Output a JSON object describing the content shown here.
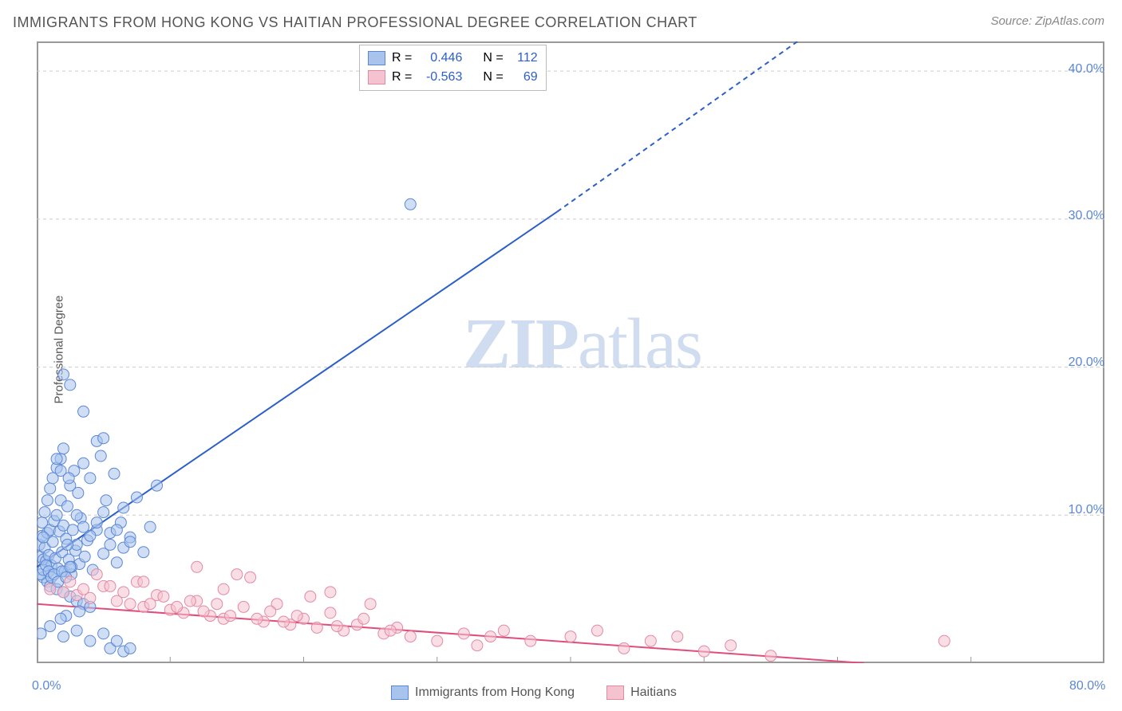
{
  "title": "IMMIGRANTS FROM HONG KONG VS HAITIAN PROFESSIONAL DEGREE CORRELATION CHART",
  "source_label": "Source: ZipAtlas.com",
  "watermark": "ZIPatlas",
  "ylabel": "Professional Degree",
  "chart": {
    "type": "scatter-with-regression",
    "xlim": [
      0,
      80
    ],
    "ylim": [
      0,
      42
    ],
    "x_ticks": [
      0,
      10,
      20,
      30,
      40,
      50,
      60,
      70,
      80
    ],
    "x_tick_labels": {
      "0": "0.0%",
      "80": "80.0%"
    },
    "y_ticks": [
      10,
      20,
      30,
      40
    ],
    "y_tick_labels": [
      "10.0%",
      "20.0%",
      "30.0%",
      "40.0%"
    ],
    "grid_y": [
      10,
      20,
      30,
      40
    ],
    "background_color": "#ffffff",
    "grid_color": "#cccccc",
    "axis_color": "#999999",
    "label_color": "#555555",
    "tick_label_color": "#5b87d6",
    "marker_radius": 7,
    "marker_opacity": 0.55,
    "line_width": 2,
    "series": [
      {
        "name": "Immigrants from Hong Kong",
        "fill_color": "#a8c3ec",
        "stroke_color": "#5b87d6",
        "line_color": "#2b5fc9",
        "r_value": "0.446",
        "n_value": "112",
        "regression": {
          "x1": 0,
          "y1": 6.5,
          "x2": 39,
          "y2": 30.5,
          "dash_from_x": 39,
          "dash_to_x": 57,
          "dash_to_y": 42
        },
        "points": [
          [
            0.2,
            8.0
          ],
          [
            0.3,
            7.2
          ],
          [
            0.4,
            8.6
          ],
          [
            0.5,
            7.0
          ],
          [
            0.6,
            7.8
          ],
          [
            0.7,
            6.9
          ],
          [
            0.8,
            8.8
          ],
          [
            0.9,
            7.3
          ],
          [
            1.0,
            9.0
          ],
          [
            1.1,
            6.6
          ],
          [
            1.2,
            8.2
          ],
          [
            1.3,
            9.6
          ],
          [
            1.4,
            7.1
          ],
          [
            1.5,
            10.0
          ],
          [
            1.6,
            6.4
          ],
          [
            1.7,
            8.9
          ],
          [
            1.8,
            11.0
          ],
          [
            1.9,
            7.5
          ],
          [
            2.0,
            9.3
          ],
          [
            2.1,
            6.2
          ],
          [
            2.2,
            8.4
          ],
          [
            2.3,
            10.6
          ],
          [
            2.4,
            7.0
          ],
          [
            2.5,
            12.0
          ],
          [
            2.6,
            6.0
          ],
          [
            2.7,
            9.0
          ],
          [
            2.8,
            13.0
          ],
          [
            2.9,
            7.6
          ],
          [
            3.0,
            8.0
          ],
          [
            3.1,
            11.5
          ],
          [
            3.2,
            6.7
          ],
          [
            3.3,
            9.8
          ],
          [
            3.5,
            13.5
          ],
          [
            3.6,
            7.2
          ],
          [
            3.8,
            8.3
          ],
          [
            4.0,
            12.5
          ],
          [
            4.2,
            6.3
          ],
          [
            4.5,
            9.0
          ],
          [
            4.8,
            14.0
          ],
          [
            5.0,
            7.4
          ],
          [
            5.2,
            11.0
          ],
          [
            5.5,
            8.0
          ],
          [
            5.8,
            12.8
          ],
          [
            6.0,
            6.8
          ],
          [
            6.3,
            9.5
          ],
          [
            6.5,
            10.5
          ],
          [
            7.0,
            8.5
          ],
          [
            7.5,
            11.2
          ],
          [
            8.0,
            7.5
          ],
          [
            8.5,
            9.2
          ],
          [
            9.0,
            12.0
          ],
          [
            0.5,
            5.8
          ],
          [
            0.8,
            5.5
          ],
          [
            1.0,
            5.2
          ],
          [
            1.5,
            5.0
          ],
          [
            2.0,
            4.8
          ],
          [
            2.5,
            4.5
          ],
          [
            3.0,
            4.2
          ],
          [
            3.5,
            4.0
          ],
          [
            4.0,
            3.8
          ],
          [
            0.4,
            9.5
          ],
          [
            0.6,
            10.2
          ],
          [
            0.8,
            11.0
          ],
          [
            1.0,
            11.8
          ],
          [
            1.2,
            12.5
          ],
          [
            1.5,
            13.2
          ],
          [
            1.8,
            13.8
          ],
          [
            2.0,
            14.5
          ],
          [
            2.3,
            8.0
          ],
          [
            2.6,
            6.5
          ],
          [
            0.3,
            6.0
          ],
          [
            0.5,
            6.3
          ],
          [
            0.7,
            6.6
          ],
          [
            0.9,
            6.2
          ],
          [
            1.1,
            5.8
          ],
          [
            1.3,
            6.0
          ],
          [
            1.6,
            5.5
          ],
          [
            1.9,
            6.2
          ],
          [
            2.2,
            5.8
          ],
          [
            2.5,
            6.5
          ],
          [
            2.0,
            19.5
          ],
          [
            2.5,
            18.8
          ],
          [
            3.5,
            17.0
          ],
          [
            4.5,
            15.0
          ],
          [
            5.0,
            15.2
          ],
          [
            1.5,
            13.8
          ],
          [
            1.8,
            13.0
          ],
          [
            2.4,
            12.5
          ],
          [
            3.0,
            10.0
          ],
          [
            3.5,
            9.2
          ],
          [
            4.0,
            8.6
          ],
          [
            4.5,
            9.5
          ],
          [
            5.0,
            10.2
          ],
          [
            5.5,
            8.8
          ],
          [
            6.0,
            9.0
          ],
          [
            6.5,
            7.8
          ],
          [
            7.0,
            8.2
          ],
          [
            0.3,
            2.0
          ],
          [
            1.0,
            2.5
          ],
          [
            2.0,
            1.8
          ],
          [
            3.0,
            2.2
          ],
          [
            4.0,
            1.5
          ],
          [
            5.0,
            2.0
          ],
          [
            5.5,
            1.0
          ],
          [
            6.0,
            1.5
          ],
          [
            6.5,
            0.8
          ],
          [
            7.0,
            1.0
          ],
          [
            2.2,
            3.2
          ],
          [
            3.2,
            3.5
          ],
          [
            1.8,
            3.0
          ],
          [
            28.0,
            31.0
          ],
          [
            0.5,
            8.5
          ]
        ]
      },
      {
        "name": "Haitians",
        "fill_color": "#f5c3cf",
        "stroke_color": "#e38aa3",
        "line_color": "#e04d7a",
        "r_value": "-0.563",
        "n_value": "69",
        "regression": {
          "x1": 0,
          "y1": 4.0,
          "x2": 62,
          "y2": 0.0
        },
        "points": [
          [
            1.0,
            5.0
          ],
          [
            2.0,
            4.8
          ],
          [
            3.0,
            4.6
          ],
          [
            4.0,
            4.4
          ],
          [
            5.0,
            5.2
          ],
          [
            6.0,
            4.2
          ],
          [
            7.0,
            4.0
          ],
          [
            8.0,
            3.8
          ],
          [
            9.0,
            4.6
          ],
          [
            10.0,
            3.6
          ],
          [
            11.0,
            3.4
          ],
          [
            12.0,
            4.2
          ],
          [
            13.0,
            3.2
          ],
          [
            14.0,
            3.0
          ],
          [
            15.0,
            6.0
          ],
          [
            16.0,
            5.8
          ],
          [
            17.0,
            2.8
          ],
          [
            18.0,
            4.0
          ],
          [
            19.0,
            2.6
          ],
          [
            20.0,
            3.0
          ],
          [
            21.0,
            2.4
          ],
          [
            22.0,
            3.4
          ],
          [
            23.0,
            2.2
          ],
          [
            24.0,
            2.6
          ],
          [
            25.0,
            4.0
          ],
          [
            26.0,
            2.0
          ],
          [
            27.0,
            2.4
          ],
          [
            28.0,
            1.8
          ],
          [
            2.5,
            5.5
          ],
          [
            3.5,
            5.0
          ],
          [
            4.5,
            6.0
          ],
          [
            5.5,
            5.2
          ],
          [
            6.5,
            4.8
          ],
          [
            7.5,
            5.5
          ],
          [
            8.5,
            4.0
          ],
          [
            9.5,
            4.5
          ],
          [
            10.5,
            3.8
          ],
          [
            11.5,
            4.2
          ],
          [
            12.5,
            3.5
          ],
          [
            13.5,
            4.0
          ],
          [
            14.5,
            3.2
          ],
          [
            15.5,
            3.8
          ],
          [
            16.5,
            3.0
          ],
          [
            17.5,
            3.5
          ],
          [
            18.5,
            2.8
          ],
          [
            19.5,
            3.2
          ],
          [
            20.5,
            4.5
          ],
          [
            22.5,
            2.5
          ],
          [
            24.5,
            3.0
          ],
          [
            26.5,
            2.2
          ],
          [
            30.0,
            1.5
          ],
          [
            32.0,
            2.0
          ],
          [
            33.0,
            1.2
          ],
          [
            34.0,
            1.8
          ],
          [
            35.0,
            2.2
          ],
          [
            37.0,
            1.5
          ],
          [
            40.0,
            1.8
          ],
          [
            42.0,
            2.2
          ],
          [
            44.0,
            1.0
          ],
          [
            46.0,
            1.5
          ],
          [
            48.0,
            1.8
          ],
          [
            50.0,
            0.8
          ],
          [
            52.0,
            1.2
          ],
          [
            55.0,
            0.5
          ],
          [
            12.0,
            6.5
          ],
          [
            22.0,
            4.8
          ],
          [
            14.0,
            5.0
          ],
          [
            68.0,
            1.5
          ],
          [
            8.0,
            5.5
          ]
        ]
      }
    ]
  },
  "legend_top": {
    "r_label": "R =",
    "n_label": "N ="
  },
  "legend_bottom": [
    {
      "label": "Immigrants from Hong Kong",
      "fill": "#a8c3ec",
      "stroke": "#5b87d6"
    },
    {
      "label": "Haitians",
      "fill": "#f5c3cf",
      "stroke": "#e38aa3"
    }
  ]
}
